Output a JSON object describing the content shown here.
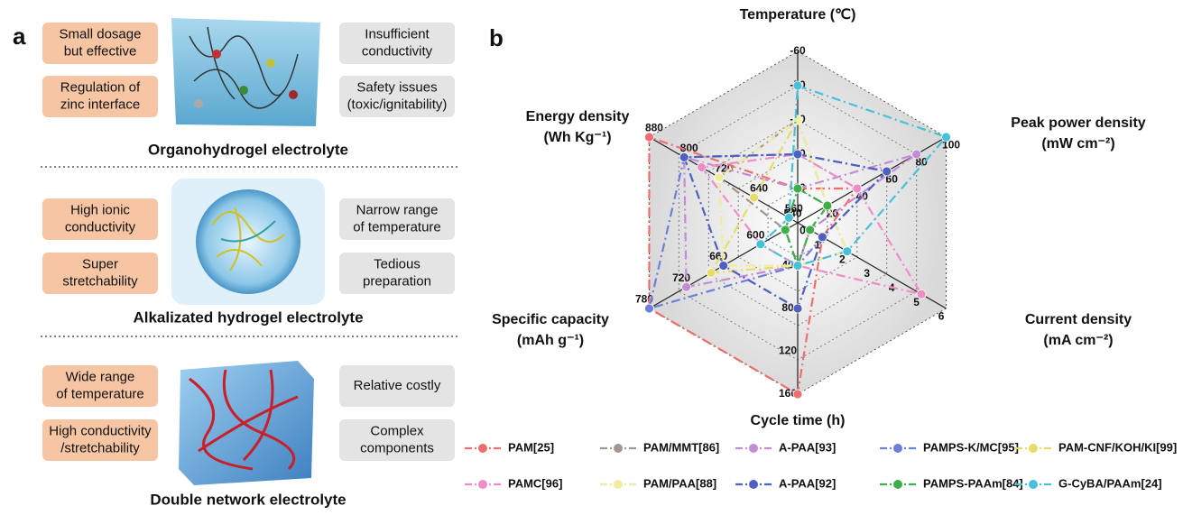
{
  "panel_a": {
    "label": "a",
    "sections": [
      {
        "title": "Organohydrogel electrolyte",
        "advantages": [
          [
            "Small dosage",
            "but effective"
          ],
          [
            "Regulation of",
            "zinc interface"
          ]
        ],
        "disadvantages": [
          [
            "Insufficient",
            "conductivity"
          ],
          [
            "Safety issues",
            "(toxic/ignitability)"
          ]
        ]
      },
      {
        "title": "Alkalizated hydrogel electrolyte",
        "advantages": [
          [
            "High ionic",
            "conductivity"
          ],
          [
            "Super",
            "stretchability"
          ]
        ],
        "disadvantages": [
          [
            "Narrow range",
            "of temperature"
          ],
          [
            "Tedious",
            "preparation"
          ]
        ]
      },
      {
        "title": "Double network electrolyte",
        "advantages": [
          [
            "Wide range",
            "of temperature"
          ],
          [
            "High conductivity",
            "/stretchability"
          ]
        ],
        "disadvantages": [
          [
            "Relative costly"
          ],
          [
            "Complex",
            "components"
          ]
        ]
      }
    ]
  },
  "chart_data": {
    "type": "radar",
    "label": "b",
    "axes": [
      {
        "label": [
          "Temperature (℃)"
        ],
        "lim": [
          -10,
          -60
        ],
        "ticks": [
          -20,
          -30,
          -40,
          -50,
          -60
        ]
      },
      {
        "label": [
          "Peak power density",
          "(mW cm⁻²)"
        ],
        "lim": [
          0,
          100
        ],
        "ticks": [
          0,
          20,
          40,
          60,
          80,
          100
        ]
      },
      {
        "label": [
          "Current density",
          "(mA cm⁻²)"
        ],
        "lim": [
          0,
          6
        ],
        "ticks": [
          1,
          2,
          3,
          4,
          5,
          6
        ]
      },
      {
        "label": [
          "Cycle time (h)"
        ],
        "lim": [
          0,
          160
        ],
        "ticks": [
          40,
          80,
          120,
          160
        ]
      },
      {
        "label": [
          "Specific capacity",
          "(mAh g⁻¹)"
        ],
        "lim": [
          540,
          780
        ],
        "ticks": [
          540,
          600,
          660,
          720,
          780
        ]
      },
      {
        "label": [
          "Energy density",
          "(Wh Kg⁻¹)"
        ],
        "lim": [
          540,
          880
        ],
        "ticks": [
          560,
          640,
          720,
          800,
          880
        ]
      }
    ],
    "series": [
      {
        "name": "PAM[25]",
        "color": "#ef6f6f",
        "values": [
          -20,
          40,
          1,
          160,
          780,
          880
        ]
      },
      {
        "name": "PAM/MMT[86]",
        "color": "#a3958f",
        "values": [
          -40,
          20,
          2,
          40,
          560,
          720
        ]
      },
      {
        "name": "A-PAA[93]",
        "color": "#c28cd6",
        "values": [
          -20,
          80,
          0.5,
          40,
          720,
          800
        ]
      },
      {
        "name": "PAMPS-K/MC[95]",
        "color": "#6f7fd6",
        "values": [
          -30,
          60,
          1,
          40,
          780,
          800
        ]
      },
      {
        "name": "PAM-CNF/KOH/KI[99]",
        "color": "#e6dc6a",
        "values": [
          -40,
          20,
          2,
          40,
          680,
          640
        ]
      },
      {
        "name": "PAMC[96]",
        "color": "#f08cc8",
        "values": [
          -30,
          40,
          5,
          40,
          600,
          760
        ]
      },
      {
        "name": "PAM/PAA[88]",
        "color": "#f0eca0",
        "values": [
          -40,
          20,
          2,
          40,
          660,
          720
        ]
      },
      {
        "name": "A-PAA[92]",
        "color": "#5060c0",
        "values": [
          -30,
          60,
          1,
          80,
          660,
          800
        ]
      },
      {
        "name": "PAMPS-PAAm[84]",
        "color": "#3fae49",
        "values": [
          -20,
          20,
          0.5,
          40,
          560,
          560
        ]
      },
      {
        "name": "G-CyBA/PAAm[24]",
        "color": "#48c0d8",
        "values": [
          -50,
          100,
          2,
          40,
          600,
          560
        ]
      }
    ]
  }
}
